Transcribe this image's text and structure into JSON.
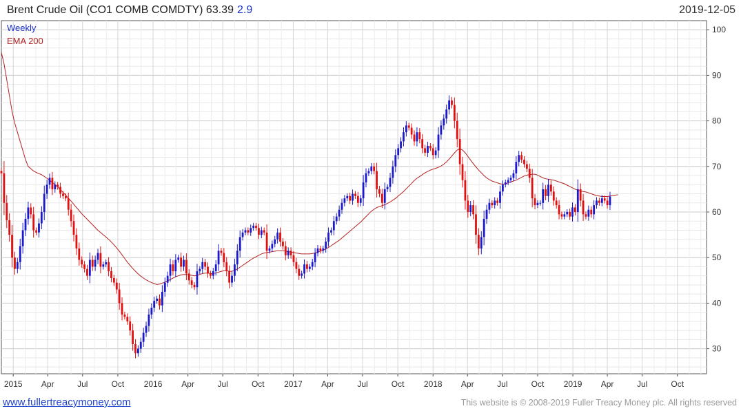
{
  "header": {
    "title": "Brent Crude Oil  (CO1 COMB COMDTY) 63.39",
    "change": "2.9",
    "date": "2019-12-05"
  },
  "footer": {
    "link": "www.fullertreacymoney.com",
    "copyright": "This website is © 2008-2019 Fuller Treacy Money plc. All rights reserved"
  },
  "colors": {
    "up": "#1a1acc",
    "down": "#e01010",
    "ema": "#b22222",
    "legend_weekly": "#1a33cc",
    "legend_ema": "#b22222"
  },
  "chart_data": {
    "type": "candlestick",
    "title": "Brent Crude Oil  (CO1 COMB COMDTY) 63.39",
    "legend": [
      "Weekly",
      "EMA 200"
    ],
    "legend_position": "top-left",
    "grid": true,
    "ylim": [
      24.5,
      102
    ],
    "yticks": [
      30,
      40,
      50,
      60,
      70,
      80,
      90,
      100
    ],
    "x_tick_labels": [
      "2015",
      "Apr",
      "Jul",
      "Oct",
      "2016",
      "Apr",
      "Jul",
      "Oct",
      "2017",
      "Apr",
      "Jul",
      "Oct",
      "2018",
      "Apr",
      "Jul",
      "Oct",
      "2019",
      "Apr",
      "Jul",
      "Oct"
    ],
    "x_range": [
      "2014-12-01",
      "2019-12-16"
    ],
    "series": [
      {
        "name": "Weekly",
        "period": "weekly",
        "start": "2014-12-01",
        "closes": [
          68.5,
          62.0,
          58.2,
          55.0,
          50.0,
          47.5,
          49.0,
          52.5,
          56.0,
          58.5,
          61.0,
          59.5,
          56.0,
          55.5,
          57.5,
          60.0,
          64.0,
          66.0,
          67.5,
          65.0,
          66.0,
          65.5,
          64.0,
          63.5,
          63.0,
          60.5,
          58.0,
          55.0,
          52.0,
          49.5,
          48.5,
          47.5,
          46.0,
          49.5,
          48.0,
          49.5,
          51.0,
          48.0,
          48.5,
          49.0,
          47.0,
          45.5,
          44.5,
          43.0,
          40.0,
          37.5,
          37.0,
          36.0,
          34.0,
          31.0,
          29.0,
          30.0,
          31.5,
          33.5,
          35.0,
          37.5,
          39.0,
          40.5,
          41.0,
          39.5,
          42.5,
          44.5,
          46.0,
          48.5,
          47.0,
          49.5,
          50.0,
          48.0,
          49.5,
          46.5,
          45.0,
          44.0,
          43.5,
          47.0,
          47.5,
          49.0,
          48.0,
          46.5,
          46.0,
          47.0,
          48.5,
          51.5,
          51.0,
          49.0,
          47.0,
          44.5,
          46.0,
          48.5,
          51.5,
          54.5,
          55.5,
          56.0,
          55.5,
          56.5,
          57.0,
          56.5,
          55.0,
          56.0,
          55.5,
          51.5,
          52.0,
          53.0,
          54.0,
          55.5,
          53.5,
          52.5,
          50.5,
          51.5,
          50.5,
          49.0,
          47.5,
          46.0,
          46.5,
          48.5,
          47.5,
          48.0,
          49.0,
          51.0,
          52.0,
          51.5,
          52.0,
          53.5,
          55.5,
          56.0,
          58.0,
          59.0,
          60.5,
          62.0,
          63.0,
          63.5,
          62.5,
          64.0,
          63.5,
          62.0,
          63.0,
          66.5,
          68.5,
          69.0,
          70.0,
          69.0,
          65.0,
          64.0,
          62.0,
          65.0,
          65.5,
          67.5,
          70.0,
          72.5,
          74.0,
          75.5,
          77.5,
          79.0,
          78.5,
          77.0,
          75.5,
          77.5,
          76.0,
          74.0,
          73.0,
          74.5,
          74.0,
          72.5,
          73.5,
          77.0,
          79.0,
          80.5,
          82.5,
          84.5,
          83.5,
          80.0,
          76.0,
          70.5,
          67.0,
          62.5,
          60.0,
          61.5,
          59.5,
          55.0,
          52.0,
          54.5,
          58.5,
          60.5,
          62.0,
          61.5,
          62.5,
          62.0,
          64.5,
          66.0,
          66.5,
          67.0,
          67.5,
          68.5,
          71.0,
          72.5,
          71.5,
          70.5,
          69.5,
          67.5,
          63.0,
          61.5,
          62.0,
          62.0,
          65.0,
          63.5,
          66.0,
          64.5,
          62.5,
          61.5,
          59.5,
          59.0,
          59.5,
          60.0,
          59.0,
          61.0,
          60.0,
          65.0,
          62.5,
          59.5,
          59.0,
          60.5,
          59.5,
          61.5,
          62.5,
          62.0,
          63.0,
          62.5,
          61.5,
          63.39
        ]
      },
      {
        "name": "EMA 200",
        "start": "2014-12-01",
        "values": [
          95.0,
          92.5,
          89.0,
          85.5,
          82.0,
          79.5,
          77.5,
          75.5,
          73.5,
          71.5,
          70.0,
          69.5,
          69.0,
          68.7,
          68.4,
          68.2,
          67.8,
          67.4,
          67.0,
          66.5,
          66.0,
          65.5,
          64.9,
          64.3,
          63.7,
          63.0,
          62.4,
          61.7,
          61.0,
          60.3,
          59.6,
          59.0,
          58.4,
          57.8,
          57.2,
          56.6,
          56.0,
          55.5,
          55.0,
          54.5,
          54.0,
          53.4,
          52.8,
          52.1,
          51.4,
          50.6,
          49.8,
          49.0,
          48.3,
          47.6,
          47.0,
          46.4,
          45.9,
          45.5,
          45.1,
          44.8,
          44.5,
          44.3,
          44.1,
          44.2,
          44.4,
          44.6,
          44.9,
          45.2,
          45.5,
          45.8,
          46.0,
          46.2,
          46.3,
          46.3,
          46.2,
          46.1,
          46.0,
          46.1,
          46.3,
          46.5,
          46.6,
          46.6,
          46.5,
          46.5,
          46.6,
          46.8,
          47.0,
          47.1,
          47.1,
          47.0,
          47.0,
          47.2,
          47.5,
          47.9,
          48.3,
          48.7,
          49.1,
          49.5,
          49.9,
          50.2,
          50.5,
          50.8,
          51.0,
          51.1,
          51.2,
          51.3,
          51.4,
          51.5,
          51.5,
          51.5,
          51.4,
          51.3,
          51.2,
          51.1,
          51.0,
          50.9,
          50.8,
          50.8,
          50.8,
          50.8,
          50.9,
          51.0,
          51.2,
          51.4,
          51.6,
          51.9,
          52.2,
          52.6,
          53.0,
          53.4,
          53.8,
          54.3,
          54.8,
          55.3,
          55.8,
          56.3,
          56.8,
          57.3,
          57.8,
          58.4,
          59.0,
          59.6,
          60.2,
          60.6,
          61.0,
          61.2,
          61.4,
          61.6,
          61.9,
          62.2,
          62.6,
          63.0,
          63.5,
          64.0,
          64.5,
          65.1,
          65.7,
          66.3,
          66.9,
          67.4,
          67.8,
          68.2,
          68.6,
          68.9,
          69.2,
          69.4,
          69.6,
          69.8,
          70.1,
          70.5,
          71.0,
          71.6,
          72.3,
          73.0,
          73.6,
          73.9,
          73.6,
          73.0,
          72.2,
          71.4,
          70.6,
          69.9,
          69.2,
          68.6,
          68.0,
          67.5,
          67.1,
          66.8,
          66.6,
          66.4,
          66.2,
          66.1,
          66.2,
          66.4,
          66.6,
          66.8,
          67.0,
          67.3,
          67.6,
          67.9,
          68.1,
          68.2,
          68.3,
          68.3,
          68.1,
          67.8,
          67.5,
          67.3,
          67.2,
          67.1,
          67.0,
          66.8,
          66.6,
          66.4,
          66.2,
          65.9,
          65.6,
          65.3,
          65.0,
          64.8,
          64.6,
          64.5,
          64.4,
          64.2,
          64.0,
          63.8,
          63.6,
          63.5,
          63.4,
          63.4,
          63.4,
          63.5,
          63.6,
          63.7,
          63.8
        ]
      }
    ]
  }
}
